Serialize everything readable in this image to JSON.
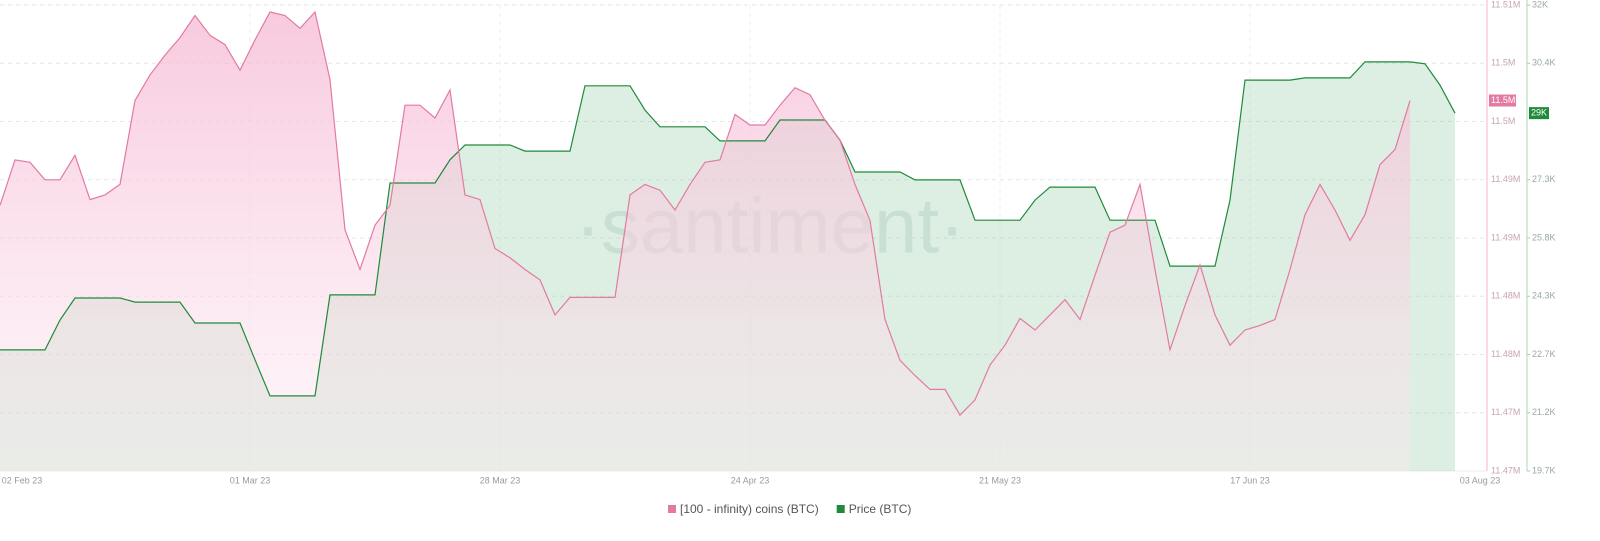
{
  "chart_data": {
    "type": "line",
    "watermark": "·santiment·",
    "x_tick_labels": [
      "02 Feb 23",
      "01 Mar 23",
      "28 Mar 23",
      "24 Apr 23",
      "21 May 23",
      "17 Jun 23",
      "03 Aug 23"
    ],
    "ylim": [
      11468000,
      11508000
    ],
    "yticks": [
      {
        "value": 11468000,
        "label": "11.47M"
      },
      {
        "value": 11473000,
        "label": "11.47M"
      },
      {
        "value": 11478000,
        "label": "11.48M"
      },
      {
        "value": 11483000,
        "label": "11.48M"
      },
      {
        "value": 11488000,
        "label": "11.49M"
      },
      {
        "value": 11493000,
        "label": "11.49M"
      },
      {
        "value": 11498000,
        "label": "11.5M"
      },
      {
        "value": 11503000,
        "label": "11.5M"
      },
      {
        "value": 11508000,
        "label": "11.51M"
      }
    ],
    "y2lim": [
      19670,
      31950
    ],
    "y2ticks": [
      {
        "value": 19670,
        "label": "19.7K"
      },
      {
        "value": 21205,
        "label": "21.2K"
      },
      {
        "value": 22740,
        "label": "22.7K"
      },
      {
        "value": 24275,
        "label": "24.3K"
      },
      {
        "value": 25810,
        "label": "25.8K"
      },
      {
        "value": 27345,
        "label": "27.3K"
      },
      {
        "value": 30415,
        "label": "30.4K"
      },
      {
        "value": 31950,
        "label": "32K"
      }
    ],
    "grid": true,
    "legend": "bottom",
    "series": [
      {
        "name": "[100 - infinity) coins (BTC)",
        "color": "#e27aa4",
        "axis": "y",
        "badge": "11.5M",
        "values": [
          11490800,
          11494700,
          11494500,
          11493000,
          11493000,
          11495100,
          11491300,
          11491700,
          11492600,
          11499800,
          11502000,
          11503700,
          11505200,
          11507100,
          11505400,
          11504600,
          11502400,
          11505000,
          11507400,
          11507100,
          11506000,
          11507400,
          11501600,
          11488700,
          11485300,
          11489100,
          11490800,
          11499400,
          11499400,
          11498300,
          11500700,
          11491700,
          11491300,
          11487100,
          11486300,
          11485300,
          11484400,
          11481400,
          11482900,
          11482900,
          11482900,
          11482900,
          11491700,
          11492600,
          11492100,
          11490400,
          11492600,
          11494500,
          11494700,
          11498600,
          11497700,
          11497700,
          11499400,
          11500900,
          11500300,
          11498100,
          11496400,
          11492600,
          11489500,
          11481000,
          11477500,
          11476200,
          11475000,
          11475000,
          11472800,
          11474100,
          11477100,
          11478800,
          11481100,
          11480100,
          11481400,
          11482700,
          11481000,
          11484800,
          11488500,
          11489100,
          11492600,
          11485300,
          11478400,
          11482200,
          11485700,
          11481400,
          11478800,
          11480100,
          11480500,
          11481000,
          11485300,
          11490000,
          11492600,
          11490400,
          11487800,
          11490000,
          11494300,
          11495600,
          11499800,
          null,
          null,
          null
        ]
      },
      {
        "name": "Price (BTC)",
        "color": "#1f8a3a",
        "axis": "y2",
        "badge": "29K",
        "values": [
          22860,
          22860,
          22860,
          22860,
          23650,
          24230,
          24230,
          24230,
          24230,
          24120,
          24120,
          24120,
          24120,
          23570,
          23570,
          23570,
          23570,
          22600,
          21650,
          21650,
          21650,
          21650,
          24310,
          24310,
          24310,
          24310,
          27260,
          27260,
          27260,
          27260,
          27870,
          28260,
          28260,
          28260,
          28260,
          28100,
          28100,
          28100,
          28100,
          29820,
          29820,
          29820,
          29820,
          29180,
          28740,
          28740,
          28740,
          28740,
          28370,
          28370,
          28370,
          28370,
          28920,
          28920,
          28920,
          28920,
          28390,
          27550,
          27550,
          27550,
          27550,
          27340,
          27340,
          27340,
          27340,
          26280,
          26280,
          26280,
          26280,
          26810,
          27150,
          27150,
          27150,
          27150,
          26280,
          26280,
          26280,
          26280,
          25070,
          25070,
          25070,
          25070,
          26810,
          29970,
          29970,
          29970,
          29970,
          30030,
          30030,
          30030,
          30030,
          30450,
          30450,
          30450,
          30450,
          30400,
          29840,
          29100
        ]
      }
    ]
  }
}
